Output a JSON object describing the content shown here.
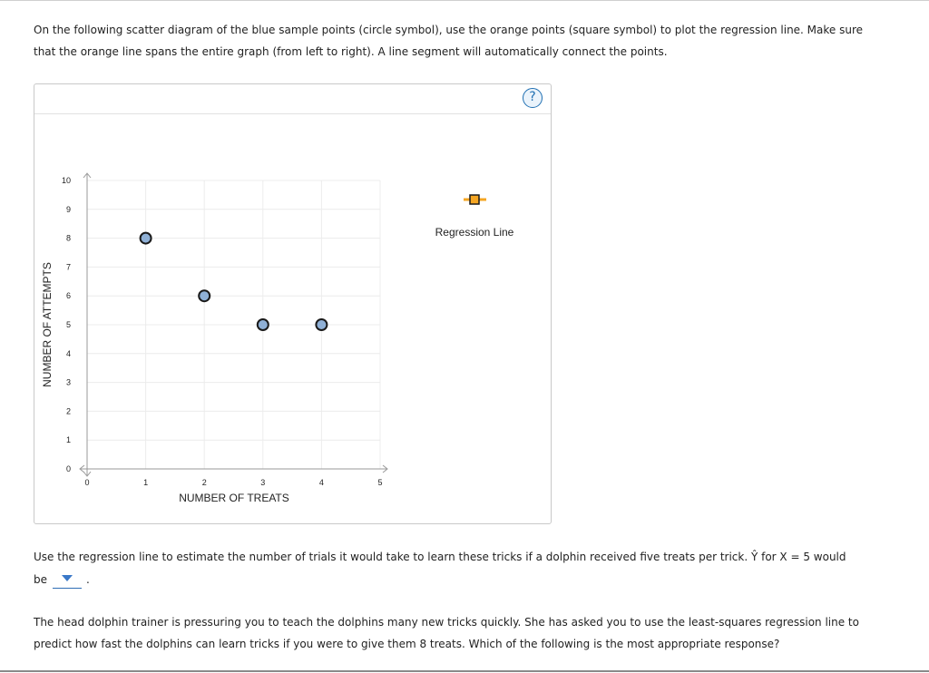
{
  "instructions": "On the following scatter diagram of the blue sample points (circle symbol), use the orange points (square symbol) to plot the regression line. Make sure that the orange line spans the entire graph (from left to right). A line segment will automatically connect the points.",
  "help": {
    "label": "?"
  },
  "legend": {
    "regression_line_label": "Regression Line"
  },
  "question1": {
    "text": "Use the regression line to estimate the number of trials it would take to learn these tricks if a dolphin received five treats per trick. Ŷ for X = 5 would",
    "be_label": "be",
    "dropdown_value": "",
    "period": "."
  },
  "question2": {
    "text": "The head dolphin trainer is pressuring you to teach the dolphins many new tricks quickly. She has asked you to use the least-squares regression line to predict how fast the dolphins can learn tricks if you were to give them 8 treats. Which of the following is the most appropriate response?"
  },
  "colors": {
    "point_fill": "#8fb0d6",
    "point_stroke": "#1a1a1a",
    "legend_orange": "#f5a623",
    "help_blue": "#1f6fb2",
    "grid": "#ececec",
    "axis": "#999999"
  },
  "chart_data": {
    "type": "scatter",
    "xlabel": "NUMBER OF TREATS",
    "ylabel": "NUMBER OF ATTEMPTS",
    "xlim": [
      0,
      5
    ],
    "ylim": [
      0,
      10
    ],
    "x_ticks": [
      "0",
      "1",
      "2",
      "3",
      "4",
      "5"
    ],
    "y_ticks": [
      "0",
      "1",
      "2",
      "3",
      "4",
      "5",
      "6",
      "7",
      "8",
      "9",
      "10"
    ],
    "grid": true,
    "series": [
      {
        "points": [
          [
            1,
            8
          ],
          [
            2,
            6
          ],
          [
            3,
            5
          ],
          [
            4,
            5
          ]
        ]
      }
    ]
  }
}
